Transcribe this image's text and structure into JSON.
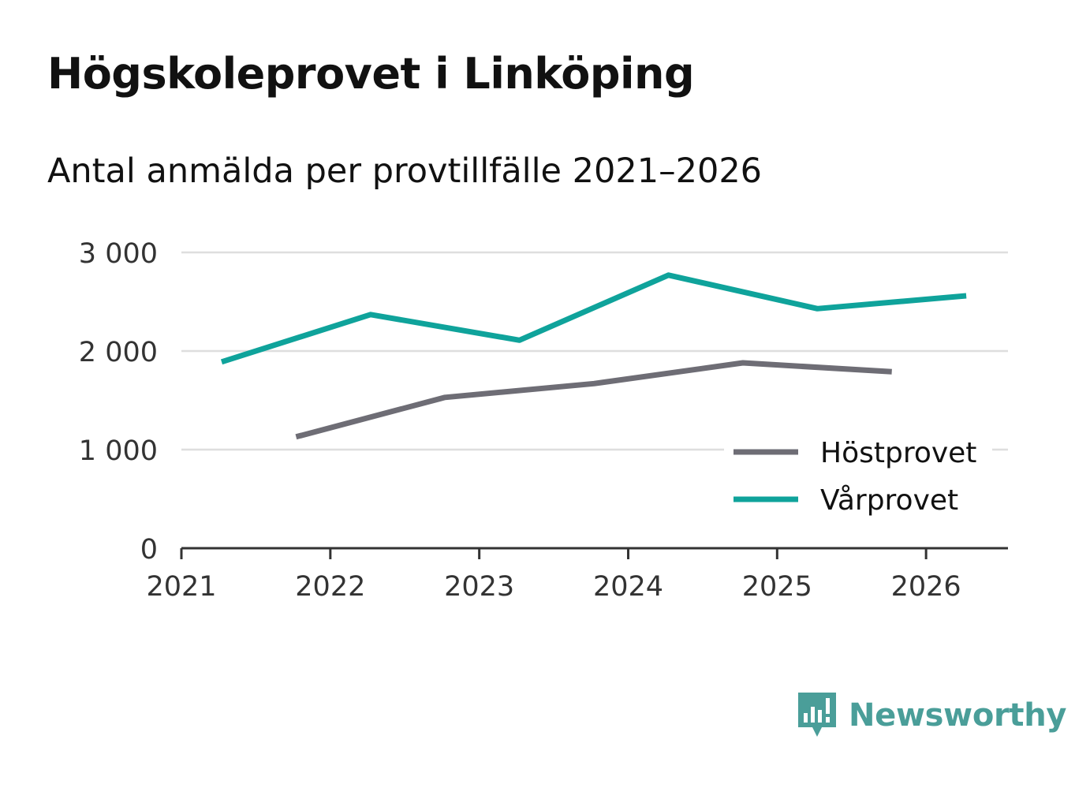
{
  "title": "Högskoleprovet i Linköping",
  "subtitle": "Antal anmälda per provtillfälle 2021–2026",
  "brand": {
    "name": "Newsworthy",
    "icon": "bar-chart-speech-bubble-icon",
    "color": "#4a9e99"
  },
  "chart_data": {
    "type": "line",
    "title": "Högskoleprovet i Linköping",
    "xlabel": "",
    "ylabel": "",
    "xlim": [
      2021,
      2026.55
    ],
    "ylim": [
      0,
      3000
    ],
    "grid": true,
    "x_ticks": [
      {
        "value": 2021,
        "label": "2021"
      },
      {
        "value": 2022,
        "label": "2022"
      },
      {
        "value": 2023,
        "label": "2023"
      },
      {
        "value": 2024,
        "label": "2024"
      },
      {
        "value": 2025,
        "label": "2025"
      },
      {
        "value": 2026,
        "label": "2026"
      }
    ],
    "y_ticks": [
      {
        "value": 0,
        "label": "0"
      },
      {
        "value": 1000,
        "label": "1 000"
      },
      {
        "value": 2000,
        "label": "2 000"
      },
      {
        "value": 3000,
        "label": "3 000"
      }
    ],
    "legend_position": "bottom-right",
    "series": [
      {
        "name": "Höstprovet",
        "color": "#6e6d75",
        "x": [
          2021.77,
          2022.77,
          2023.77,
          2024.77,
          2025.77
        ],
        "values": [
          1130,
          1530,
          1670,
          1880,
          1790
        ]
      },
      {
        "name": "Vårprovet",
        "color": "#0fa39b",
        "x": [
          2021.27,
          2022.27,
          2023.27,
          2024.27,
          2025.27,
          2026.27
        ],
        "values": [
          1890,
          2370,
          2110,
          2770,
          2430,
          2560
        ]
      }
    ]
  }
}
